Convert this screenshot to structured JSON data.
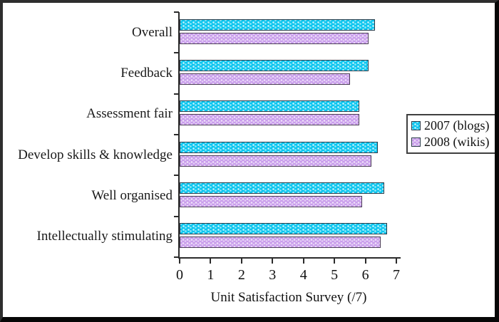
{
  "chart_data": {
    "type": "bar",
    "orientation": "horizontal",
    "title": "",
    "xlabel": "Unit Satisfaction Survey (/7)",
    "ylabel": "",
    "xlim": [
      0,
      7
    ],
    "x_ticks": [
      "0",
      "1",
      "2",
      "3",
      "4",
      "5",
      "6",
      "7"
    ],
    "grid": false,
    "legend_position": "right",
    "categories": [
      "Overall",
      "Feedback",
      "Assessment fair",
      "Develop skills & knowledge",
      "Well organised",
      "Intellectually stimulating"
    ],
    "series": [
      {
        "name": "2007 (blogs)",
        "color": "#0cc6ef",
        "values": [
          6.3,
          6.1,
          5.8,
          6.4,
          6.6,
          6.7
        ]
      },
      {
        "name": "2008 (wikis)",
        "color": "#c89ceb",
        "values": [
          6.1,
          5.5,
          5.8,
          6.2,
          5.9,
          6.5
        ]
      }
    ]
  },
  "frame": {
    "border_dark": "#070707",
    "border_light": "#2e2e2e",
    "background": "#ffffff"
  }
}
